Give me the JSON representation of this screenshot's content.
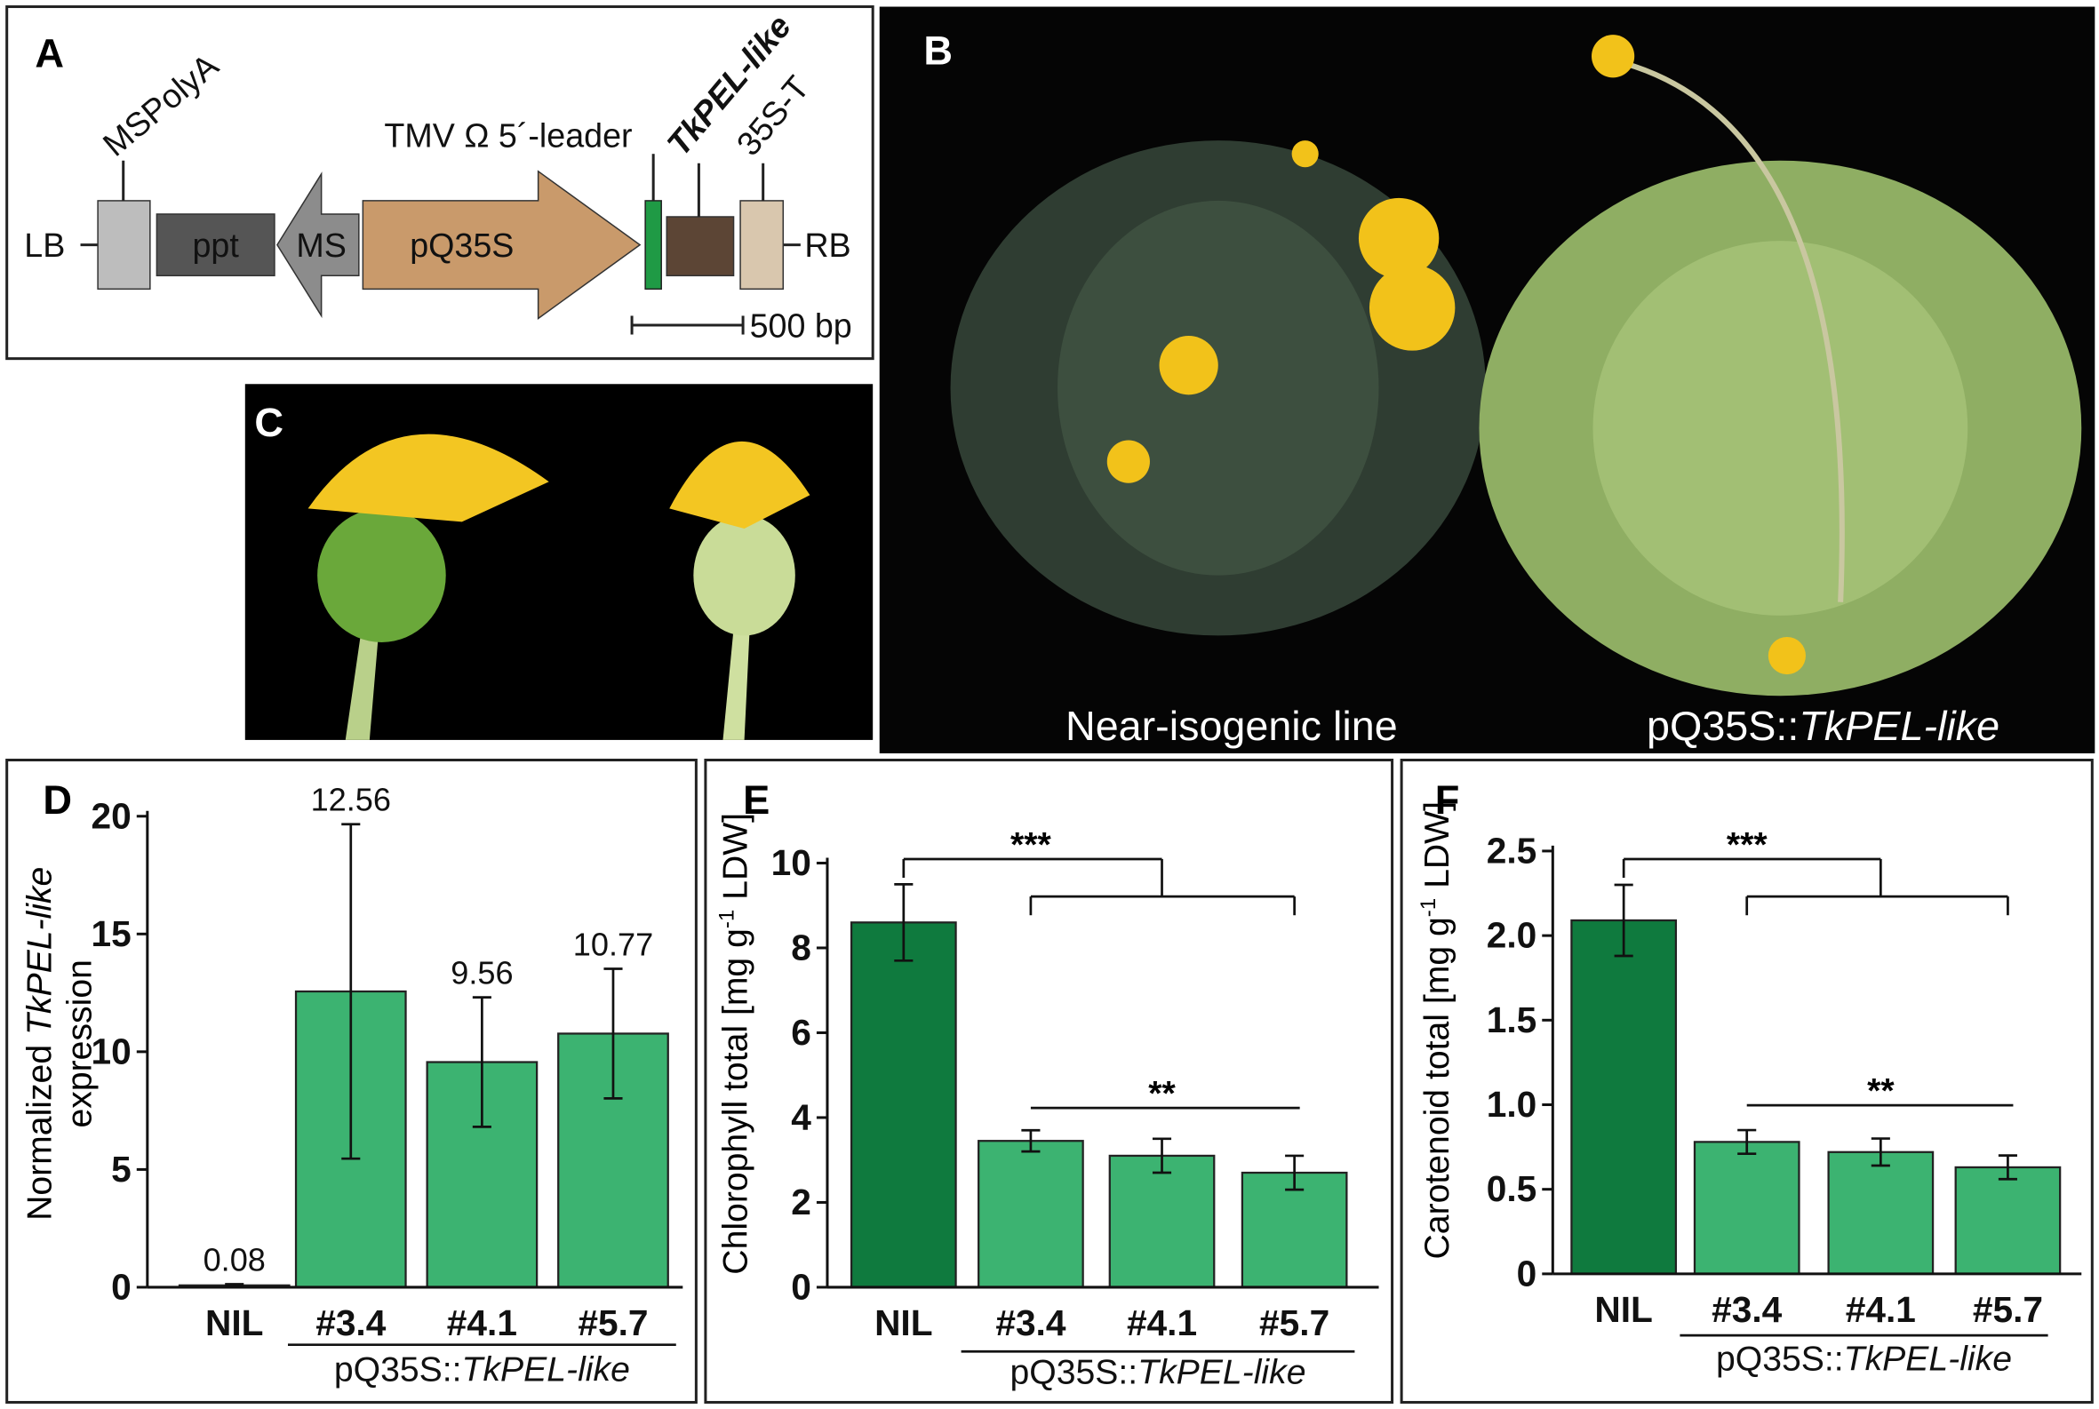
{
  "diagram": {
    "letter": "A",
    "ms_polya": "MSPolyA",
    "tmv": "TMV Ω 5´-leader",
    "tkpel": "TkPEL-like",
    "t35s": "35S-T",
    "lb": "LB",
    "ppt": "ppt",
    "ms": "MS",
    "pq35s": "pQ35S",
    "rb": "RB",
    "scale": "500 bp"
  },
  "photo_plants": {
    "letter": "B",
    "left_caption": "Near-isogenic line",
    "right_caption_plain": "pQ35S::",
    "right_caption_italic": "TkPEL-like"
  },
  "photo_flowers": {
    "letter": "C"
  },
  "chart_data": [
    {
      "type": "bar",
      "panel": "D",
      "ylabel": [
        "Normalized ",
        "TkPEL-like",
        "expression"
      ],
      "categories": [
        "NIL",
        "#3.4",
        "#4.1",
        "#5.7"
      ],
      "values": [
        0.08,
        12.56,
        9.56,
        10.77
      ],
      "errors": [
        0.05,
        7.1,
        2.75,
        2.75
      ],
      "colors": [
        "#3cb371",
        "#3cb371",
        "#3cb371",
        "#3cb371"
      ],
      "show_values": true,
      "ylim": [
        0,
        20
      ],
      "yticks": [
        0,
        5,
        10,
        15,
        20
      ],
      "group_label": {
        "plain": "pQ35S::",
        "italic": "TkPEL-like"
      },
      "annotations": []
    },
    {
      "type": "bar",
      "panel": "E",
      "ylabel": [
        "Chlorophyll total [mg g",
        "-1",
        " LDW]"
      ],
      "categories": [
        "NIL",
        "#3.4",
        "#4.1",
        "#5.7"
      ],
      "values": [
        8.6,
        3.45,
        3.1,
        2.7
      ],
      "errors": [
        0.9,
        0.25,
        0.4,
        0.4
      ],
      "colors": [
        "#0f7a3e",
        "#3cb371",
        "#3cb371",
        "#3cb371"
      ],
      "show_values": false,
      "ylim": [
        0,
        10
      ],
      "yticks": [
        0,
        2,
        4,
        6,
        8,
        10
      ],
      "group_label": {
        "plain": "pQ35S::",
        "italic": "TkPEL-like"
      },
      "annotations": [
        "***",
        "**"
      ]
    },
    {
      "type": "bar",
      "panel": "F",
      "ylabel": [
        "Carotenoid total [mg g",
        "-1",
        " LDW]"
      ],
      "categories": [
        "NIL",
        "#3.4",
        "#4.1",
        "#5.7"
      ],
      "values": [
        2.09,
        0.78,
        0.72,
        0.63
      ],
      "errors": [
        0.21,
        0.07,
        0.08,
        0.07
      ],
      "colors": [
        "#0f7a3e",
        "#3cb371",
        "#3cb371",
        "#3cb371"
      ],
      "show_values": false,
      "ylim": [
        0,
        2.5
      ],
      "yticks": [
        0,
        0.5,
        {
          "value": 1,
          "label": "1.0"
        },
        1.5,
        {
          "value": 2,
          "label": "2.0"
        },
        2.5
      ],
      "group_label": {
        "plain": "pQ35S::",
        "italic": "TkPEL-like"
      },
      "annotations": [
        "***",
        "**"
      ]
    }
  ]
}
